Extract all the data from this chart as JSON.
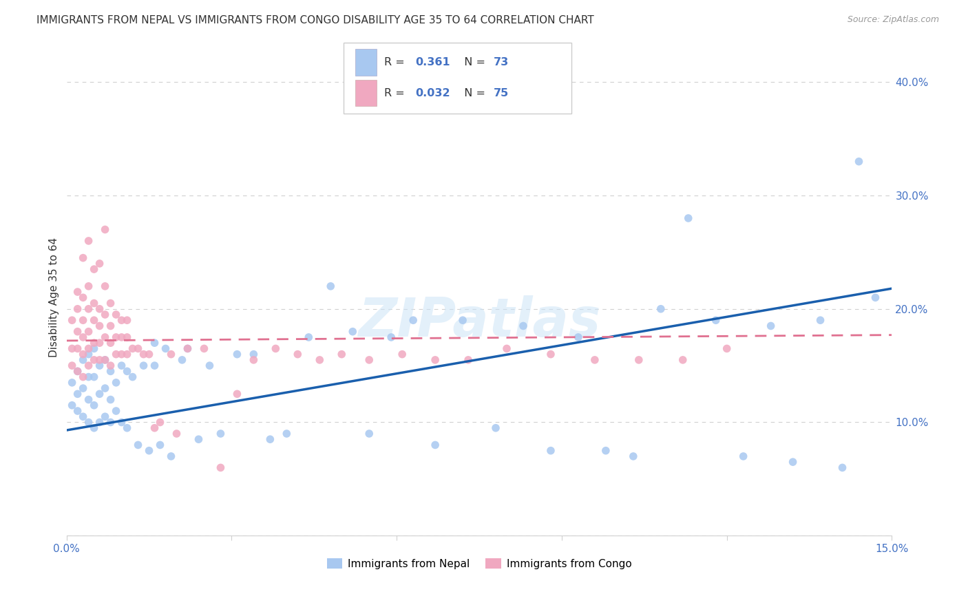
{
  "title": "IMMIGRANTS FROM NEPAL VS IMMIGRANTS FROM CONGO DISABILITY AGE 35 TO 64 CORRELATION CHART",
  "source": "Source: ZipAtlas.com",
  "ylabel": "Disability Age 35 to 64",
  "xlim": [
    0.0,
    0.15
  ],
  "ylim": [
    0.0,
    0.42
  ],
  "nepal_R": 0.361,
  "nepal_N": 73,
  "congo_R": 0.032,
  "congo_N": 75,
  "nepal_color": "#a8c8f0",
  "congo_color": "#f0a8c0",
  "nepal_line_color": "#1a5fad",
  "congo_line_color": "#e07090",
  "nepal_x": [
    0.001,
    0.001,
    0.002,
    0.002,
    0.002,
    0.003,
    0.003,
    0.003,
    0.004,
    0.004,
    0.004,
    0.004,
    0.005,
    0.005,
    0.005,
    0.005,
    0.006,
    0.006,
    0.006,
    0.007,
    0.007,
    0.007,
    0.008,
    0.008,
    0.008,
    0.009,
    0.009,
    0.01,
    0.01,
    0.011,
    0.011,
    0.012,
    0.013,
    0.014,
    0.015,
    0.016,
    0.016,
    0.017,
    0.018,
    0.019,
    0.021,
    0.022,
    0.024,
    0.026,
    0.028,
    0.031,
    0.034,
    0.037,
    0.04,
    0.044,
    0.048,
    0.052,
    0.055,
    0.059,
    0.063,
    0.067,
    0.072,
    0.078,
    0.083,
    0.088,
    0.093,
    0.098,
    0.103,
    0.108,
    0.113,
    0.118,
    0.123,
    0.128,
    0.132,
    0.137,
    0.141,
    0.144,
    0.147
  ],
  "nepal_y": [
    0.115,
    0.135,
    0.11,
    0.125,
    0.145,
    0.105,
    0.13,
    0.155,
    0.1,
    0.12,
    0.14,
    0.16,
    0.095,
    0.115,
    0.14,
    0.165,
    0.1,
    0.125,
    0.15,
    0.105,
    0.13,
    0.155,
    0.1,
    0.12,
    0.145,
    0.11,
    0.135,
    0.1,
    0.15,
    0.095,
    0.145,
    0.14,
    0.08,
    0.15,
    0.075,
    0.15,
    0.17,
    0.08,
    0.165,
    0.07,
    0.155,
    0.165,
    0.085,
    0.15,
    0.09,
    0.16,
    0.16,
    0.085,
    0.09,
    0.175,
    0.22,
    0.18,
    0.09,
    0.175,
    0.19,
    0.08,
    0.19,
    0.095,
    0.185,
    0.075,
    0.175,
    0.075,
    0.07,
    0.2,
    0.28,
    0.19,
    0.07,
    0.185,
    0.065,
    0.19,
    0.06,
    0.33,
    0.21
  ],
  "congo_x": [
    0.001,
    0.001,
    0.001,
    0.002,
    0.002,
    0.002,
    0.002,
    0.002,
    0.003,
    0.003,
    0.003,
    0.003,
    0.003,
    0.003,
    0.004,
    0.004,
    0.004,
    0.004,
    0.004,
    0.004,
    0.005,
    0.005,
    0.005,
    0.005,
    0.005,
    0.006,
    0.006,
    0.006,
    0.006,
    0.006,
    0.007,
    0.007,
    0.007,
    0.007,
    0.007,
    0.008,
    0.008,
    0.008,
    0.008,
    0.009,
    0.009,
    0.009,
    0.01,
    0.01,
    0.01,
    0.011,
    0.011,
    0.011,
    0.012,
    0.013,
    0.014,
    0.015,
    0.016,
    0.017,
    0.019,
    0.02,
    0.022,
    0.025,
    0.028,
    0.031,
    0.034,
    0.038,
    0.042,
    0.046,
    0.05,
    0.055,
    0.061,
    0.067,
    0.073,
    0.08,
    0.088,
    0.096,
    0.104,
    0.112,
    0.12
  ],
  "congo_y": [
    0.15,
    0.165,
    0.19,
    0.145,
    0.165,
    0.18,
    0.2,
    0.215,
    0.14,
    0.16,
    0.175,
    0.19,
    0.21,
    0.245,
    0.15,
    0.165,
    0.18,
    0.2,
    0.22,
    0.26,
    0.155,
    0.17,
    0.19,
    0.205,
    0.235,
    0.155,
    0.17,
    0.185,
    0.2,
    0.24,
    0.155,
    0.175,
    0.195,
    0.22,
    0.27,
    0.15,
    0.17,
    0.185,
    0.205,
    0.16,
    0.175,
    0.195,
    0.16,
    0.175,
    0.19,
    0.16,
    0.175,
    0.19,
    0.165,
    0.165,
    0.16,
    0.16,
    0.095,
    0.1,
    0.16,
    0.09,
    0.165,
    0.165,
    0.06,
    0.125,
    0.155,
    0.165,
    0.16,
    0.155,
    0.16,
    0.155,
    0.16,
    0.155,
    0.155,
    0.165,
    0.16,
    0.155,
    0.155,
    0.155,
    0.165
  ],
  "nepal_trend_x0": 0.0,
  "nepal_trend_x1": 0.15,
  "nepal_trend_y0": 0.093,
  "nepal_trend_y1": 0.218,
  "congo_trend_x0": 0.0,
  "congo_trend_x1": 0.15,
  "congo_trend_y0": 0.172,
  "congo_trend_y1": 0.177,
  "watermark": "ZIPatlas",
  "background_color": "#ffffff",
  "grid_color": "#d0d0d0",
  "title_fontsize": 11,
  "axis_label_fontsize": 11,
  "tick_fontsize": 11,
  "tick_color": "#4472c4"
}
